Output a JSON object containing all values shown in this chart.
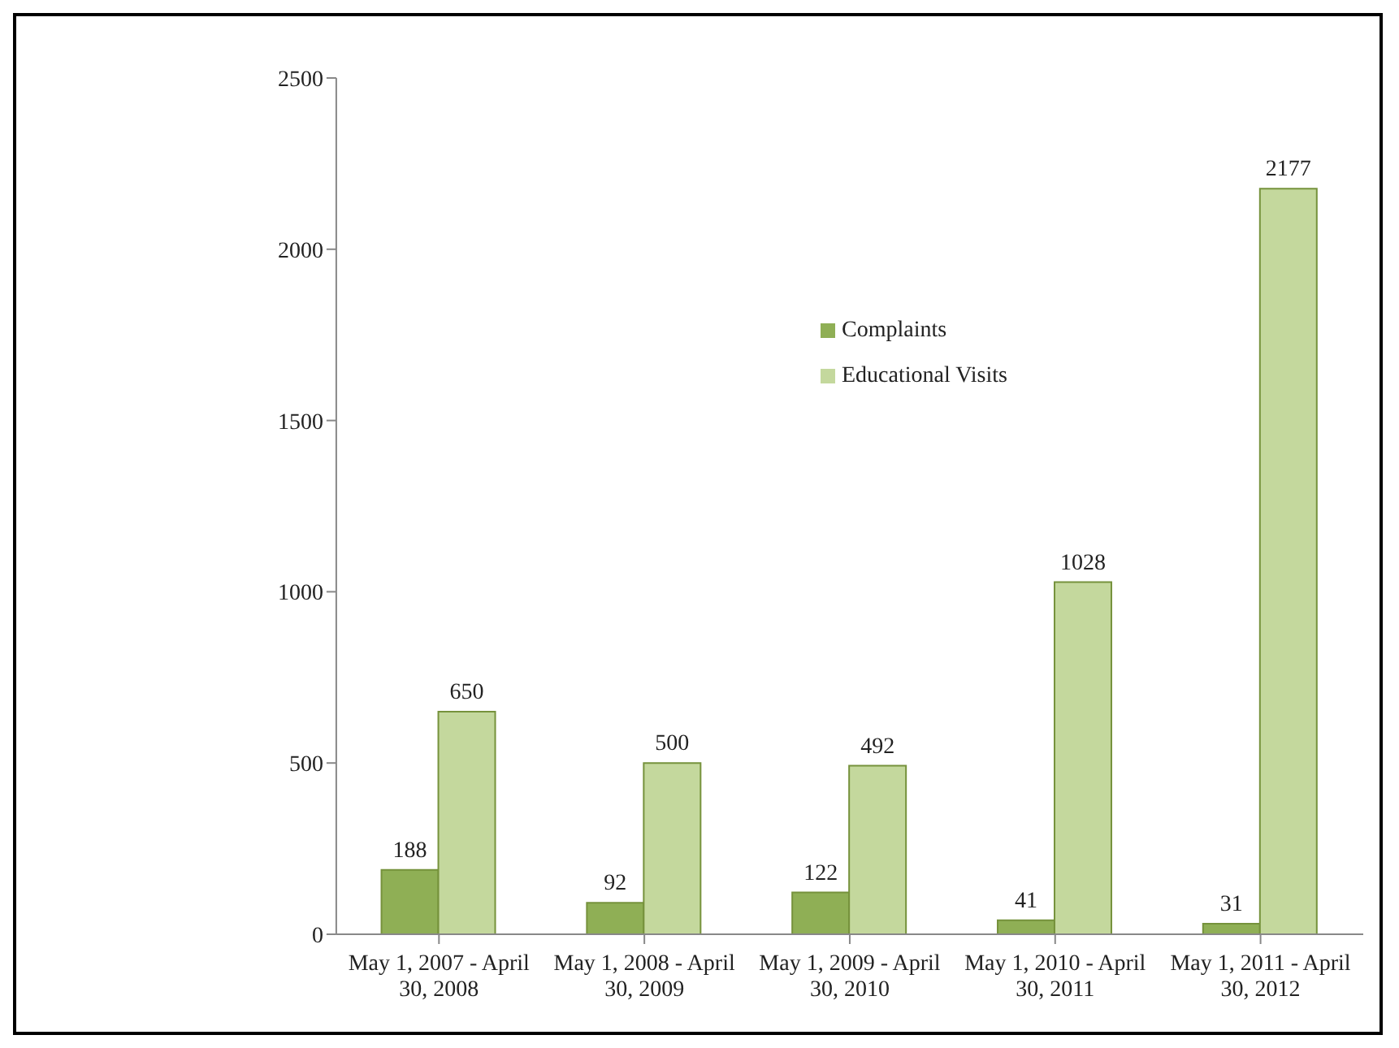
{
  "chart_data": {
    "type": "bar",
    "categories": [
      "May 1, 2007 - April 30, 2008",
      "May 1, 2008 - April 30, 2009",
      "May 1, 2009 - April 30, 2010",
      "May 1, 2010 - April 30, 2011",
      "May 1, 2011 - April 30, 2012"
    ],
    "series": [
      {
        "name": "Complaints",
        "color": "#8faf55",
        "values": [
          188,
          92,
          122,
          41,
          31
        ]
      },
      {
        "name": "Educational Visits",
        "color": "#c4d89d",
        "values": [
          650,
          500,
          492,
          1028,
          2177
        ]
      }
    ],
    "ylim": [
      0,
      2500
    ],
    "yticks": [
      0,
      500,
      1000,
      1500,
      2000,
      2500
    ],
    "grid": false,
    "legend": "top right",
    "data_labels": true
  }
}
